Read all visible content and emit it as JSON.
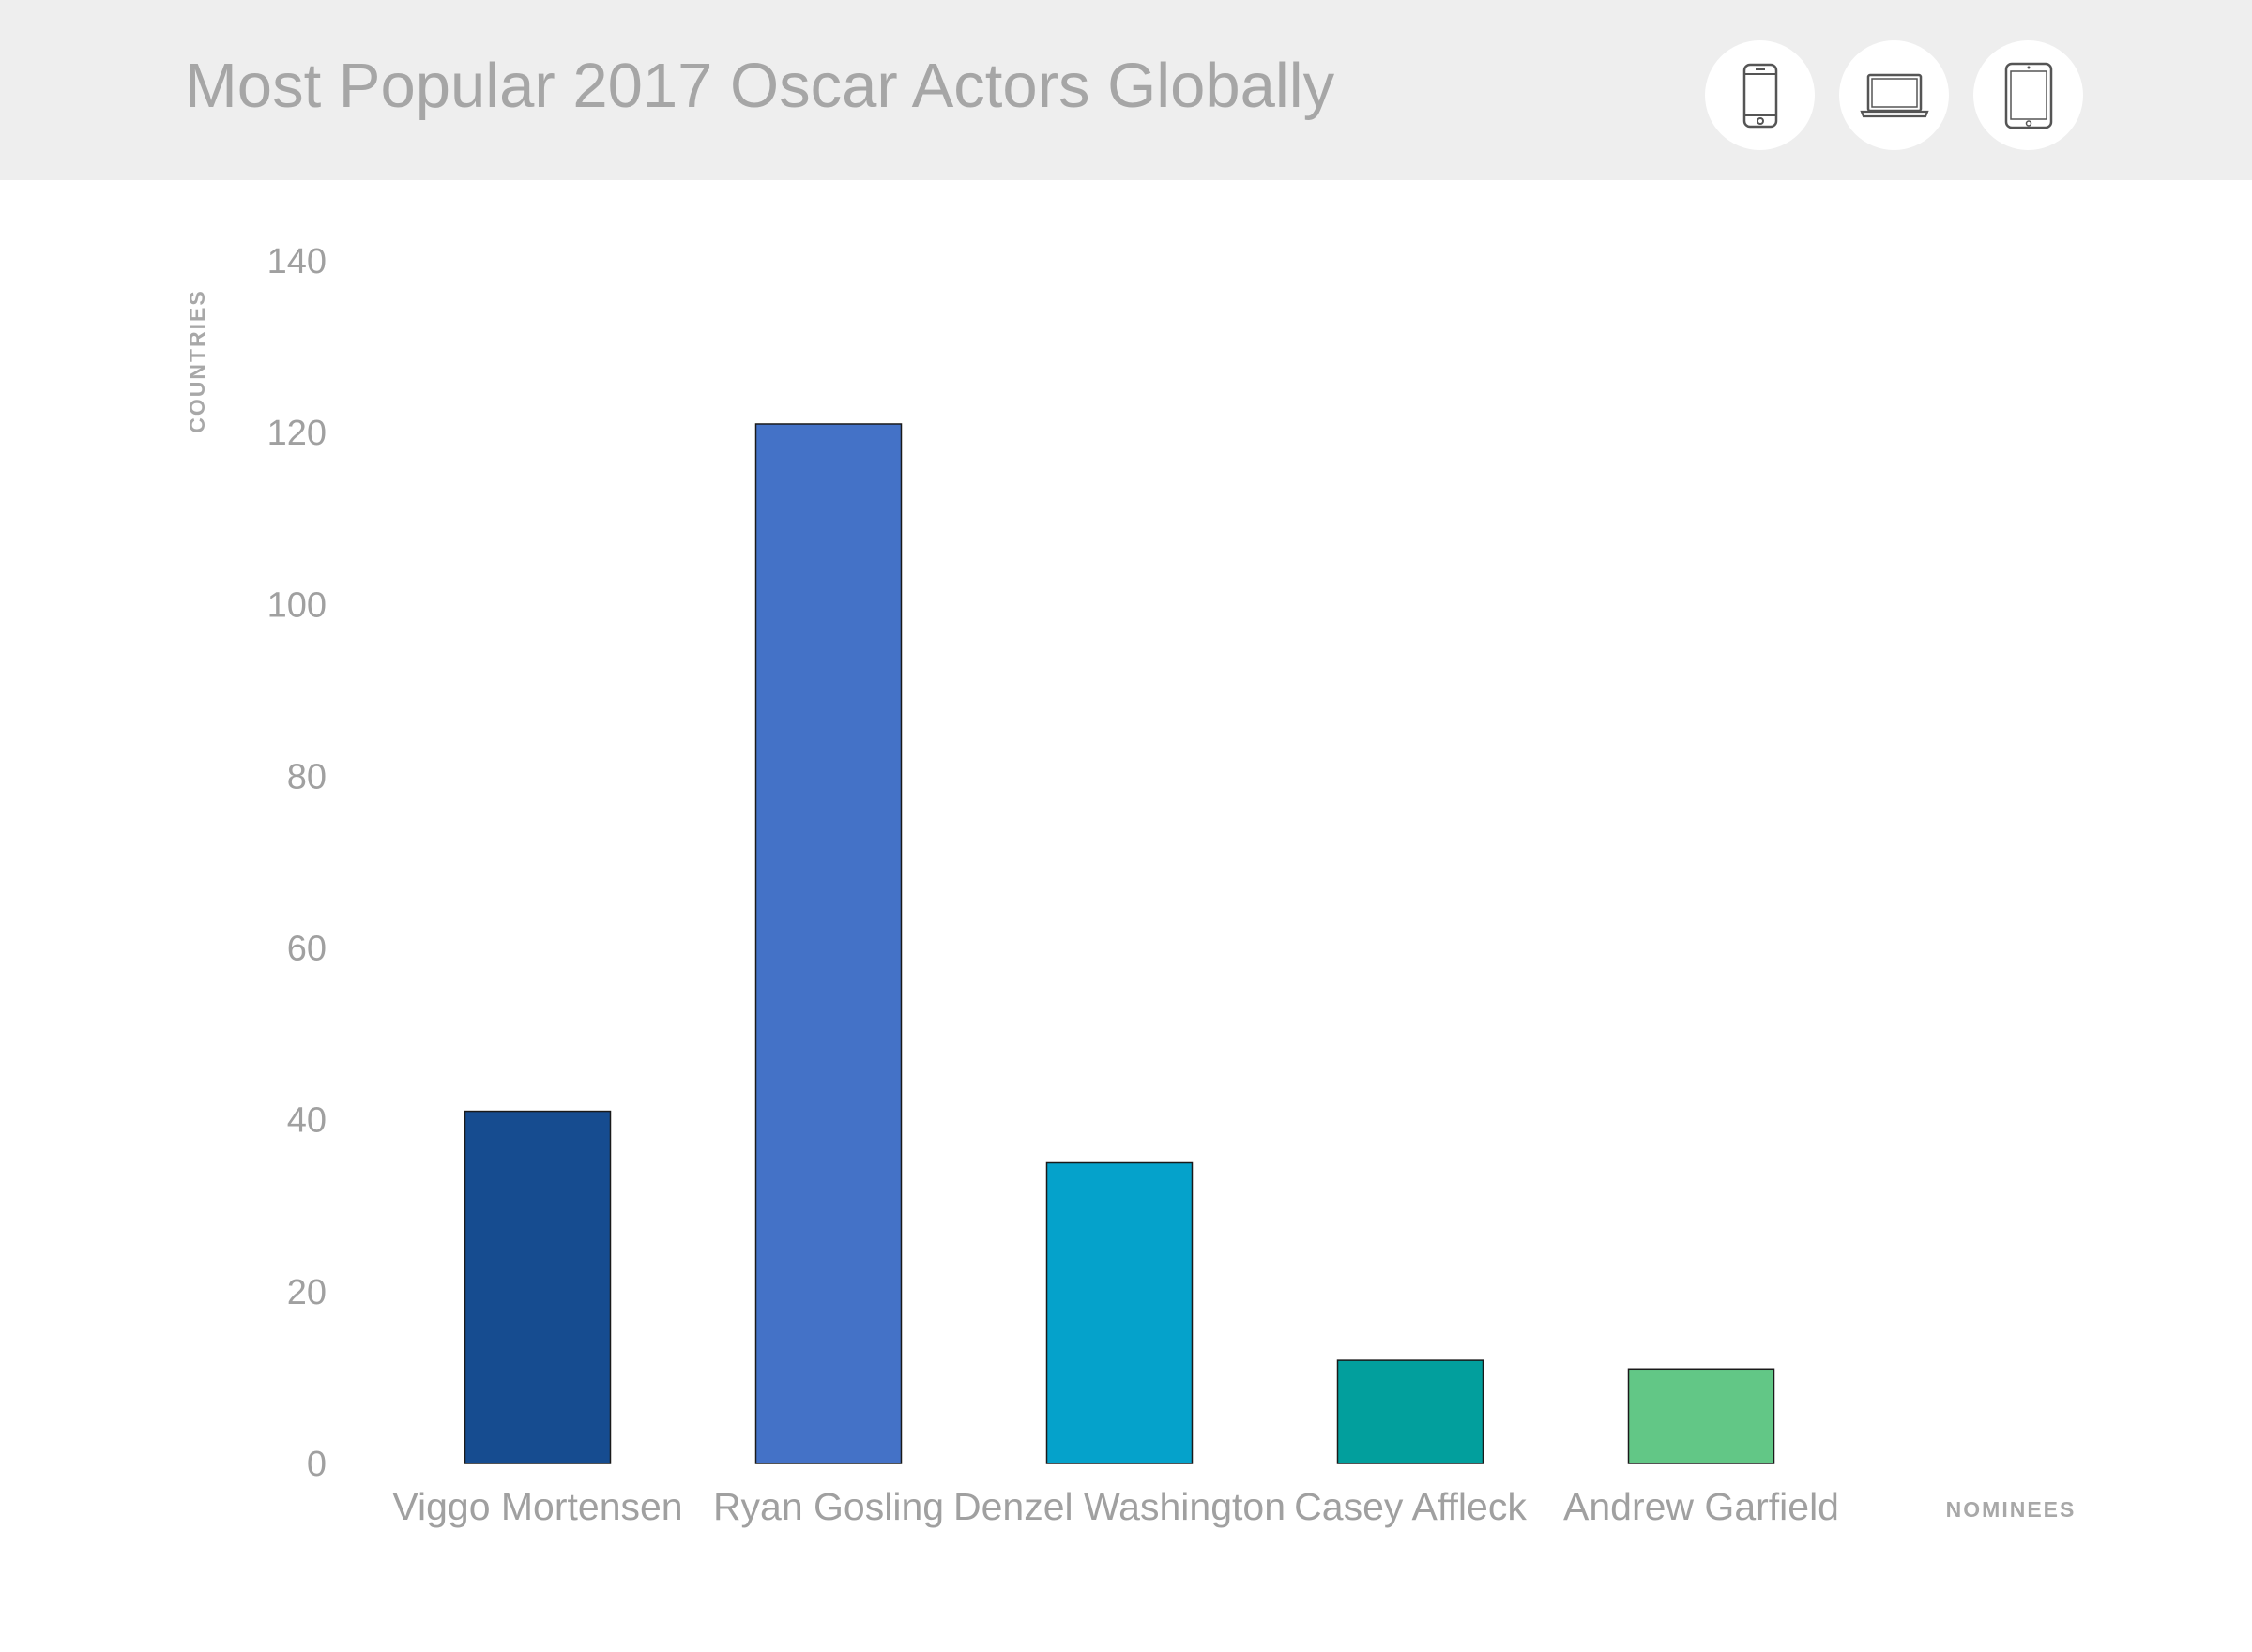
{
  "header": {
    "title": "Most Popular 2017 Oscar Actors Globally",
    "devices": [
      {
        "name": "phone",
        "icon": "phone-icon"
      },
      {
        "name": "laptop",
        "icon": "laptop-icon"
      },
      {
        "name": "tablet",
        "icon": "tablet-icon"
      }
    ]
  },
  "chart_data": {
    "type": "bar",
    "title": "Most Popular 2017 Oscar Actors Globally",
    "xlabel": "NOMINEES",
    "ylabel": "COUNTRIES",
    "ylim": [
      0,
      140
    ],
    "yticks": [
      0,
      20,
      40,
      60,
      80,
      100,
      120,
      140
    ],
    "categories": [
      "Viggo Mortensen",
      "Ryan Gosling",
      "Denzel Washington",
      "Casey Affleck",
      "Andrew Garfield"
    ],
    "values": [
      41,
      121,
      35,
      12,
      11
    ],
    "colors": [
      "#164c90",
      "#4472c7",
      "#05a2cb",
      "#029f9d",
      "#62c786"
    ],
    "grid": false,
    "legend": "none"
  }
}
